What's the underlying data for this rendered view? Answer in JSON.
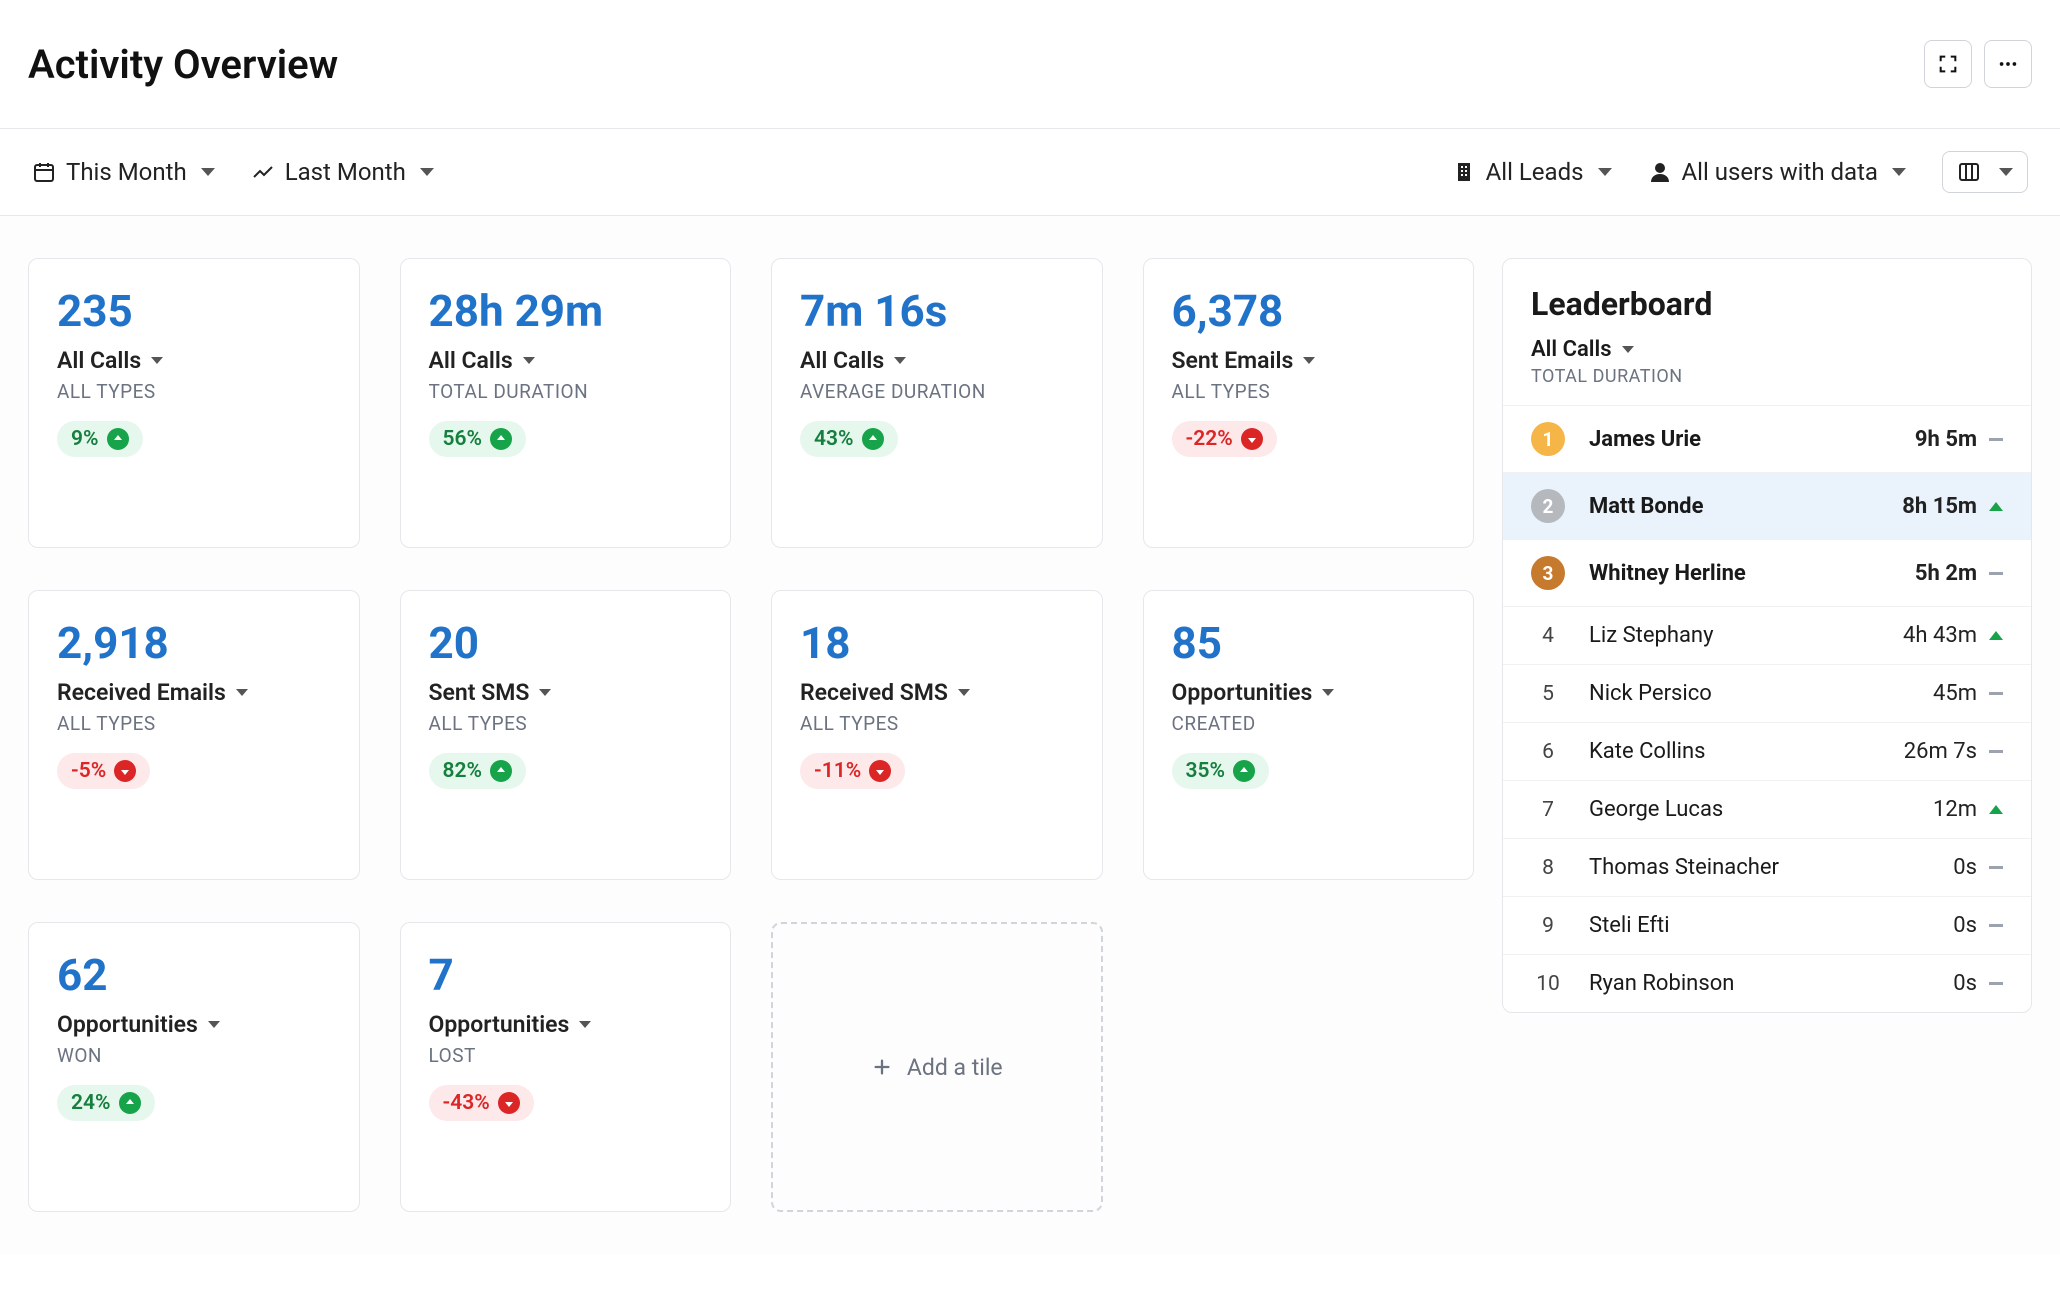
{
  "page_title": "Activity Overview",
  "filters": {
    "date_range": "This Month",
    "compare_to": "Last Month",
    "leads_scope": "All Leads",
    "users_scope": "All users with data"
  },
  "colors": {
    "value_text": "#2172c9",
    "positive_bg": "#e6f7ed",
    "positive_fg": "#15803d",
    "positive_icon_bg": "#16a34a",
    "negative_bg": "#fde8ea",
    "negative_fg": "#dc2626",
    "negative_icon_bg": "#dc2626",
    "border": "#e5e7eb",
    "muted": "#6b7280",
    "rank1": "#f5b547",
    "rank2": "#b5b9be",
    "rank3": "#c67a2d",
    "highlight_row": "#eaf3fb"
  },
  "tiles": [
    {
      "value": "235",
      "metric": "All Calls",
      "subtype": "ALL TYPES",
      "change": "9%",
      "direction": "pos"
    },
    {
      "value": "28h 29m",
      "metric": "All Calls",
      "subtype": "TOTAL DURATION",
      "change": "56%",
      "direction": "pos"
    },
    {
      "value": "7m 16s",
      "metric": "All Calls",
      "subtype": "AVERAGE DURATION",
      "change": "43%",
      "direction": "pos"
    },
    {
      "value": "6,378",
      "metric": "Sent Emails",
      "subtype": "ALL TYPES",
      "change": "-22%",
      "direction": "neg"
    },
    {
      "value": "2,918",
      "metric": "Received Emails",
      "subtype": "ALL TYPES",
      "change": "-5%",
      "direction": "neg"
    },
    {
      "value": "20",
      "metric": "Sent SMS",
      "subtype": "ALL TYPES",
      "change": "82%",
      "direction": "pos"
    },
    {
      "value": "18",
      "metric": "Received SMS",
      "subtype": "ALL TYPES",
      "change": "-11%",
      "direction": "neg"
    },
    {
      "value": "85",
      "metric": "Opportunities",
      "subtype": "CREATED",
      "change": "35%",
      "direction": "pos"
    },
    {
      "value": "62",
      "metric": "Opportunities",
      "subtype": "WON",
      "change": "24%",
      "direction": "pos"
    },
    {
      "value": "7",
      "metric": "Opportunities",
      "subtype": "LOST",
      "change": "-43%",
      "direction": "neg"
    }
  ],
  "add_tile_label": "Add a tile",
  "leaderboard": {
    "title": "Leaderboard",
    "metric": "All Calls",
    "subtype": "TOTAL DURATION",
    "rows": [
      {
        "rank": 1,
        "name": "James Urie",
        "value": "9h 5m",
        "trend": "flat",
        "badge_color": "#f5b547",
        "bold": true
      },
      {
        "rank": 2,
        "name": "Matt Bonde",
        "value": "8h 15m",
        "trend": "up",
        "badge_color": "#b5b9be",
        "bold": true,
        "highlight": true
      },
      {
        "rank": 3,
        "name": "Whitney Herline",
        "value": "5h 2m",
        "trend": "flat",
        "badge_color": "#c67a2d",
        "bold": true
      },
      {
        "rank": 4,
        "name": "Liz Stephany",
        "value": "4h 43m",
        "trend": "up"
      },
      {
        "rank": 5,
        "name": "Nick Persico",
        "value": "45m",
        "trend": "flat"
      },
      {
        "rank": 6,
        "name": "Kate Collins",
        "value": "26m 7s",
        "trend": "flat"
      },
      {
        "rank": 7,
        "name": "George Lucas",
        "value": "12m",
        "trend": "up"
      },
      {
        "rank": 8,
        "name": "Thomas Steinacher",
        "value": "0s",
        "trend": "flat"
      },
      {
        "rank": 9,
        "name": "Steli Efti",
        "value": "0s",
        "trend": "flat"
      },
      {
        "rank": 10,
        "name": "Ryan Robinson",
        "value": "0s",
        "trend": "flat"
      }
    ]
  }
}
